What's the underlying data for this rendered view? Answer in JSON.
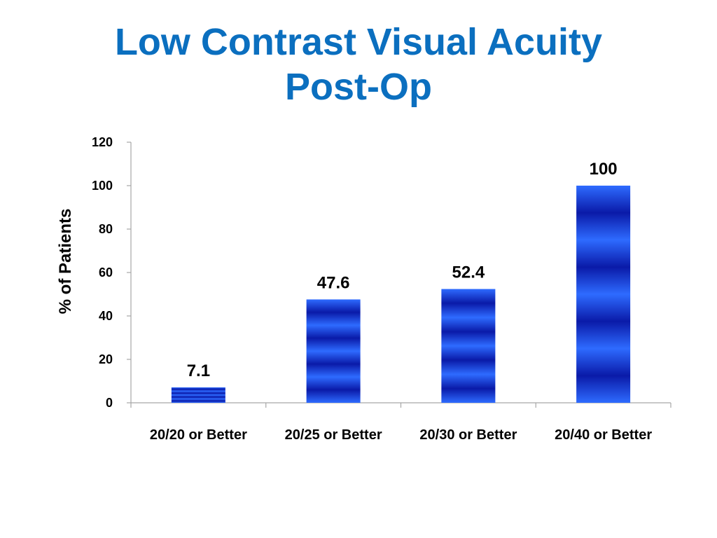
{
  "title": "Low Contrast Visual Acuity Post-Op",
  "colors": {
    "title": "#0B6FBF",
    "bar_light": "#2E6BFF",
    "bar_dark": "#0A1AA8",
    "axis": "#A6A6A6"
  },
  "chart_data": {
    "type": "bar",
    "categories": [
      "20/20 or Better",
      "20/25 or Better",
      "20/30 or Better",
      "20/40 or Better"
    ],
    "values": [
      7.1,
      47.6,
      52.4,
      100
    ],
    "data_labels": [
      "7.1",
      "47.6",
      "52.4",
      "100"
    ],
    "xlabel": "",
    "ylabel": "% of Patients",
    "ylim": [
      0,
      120
    ],
    "yticks": [
      0,
      20,
      40,
      60,
      80,
      100,
      120
    ],
    "grid": false,
    "legend": "none"
  }
}
